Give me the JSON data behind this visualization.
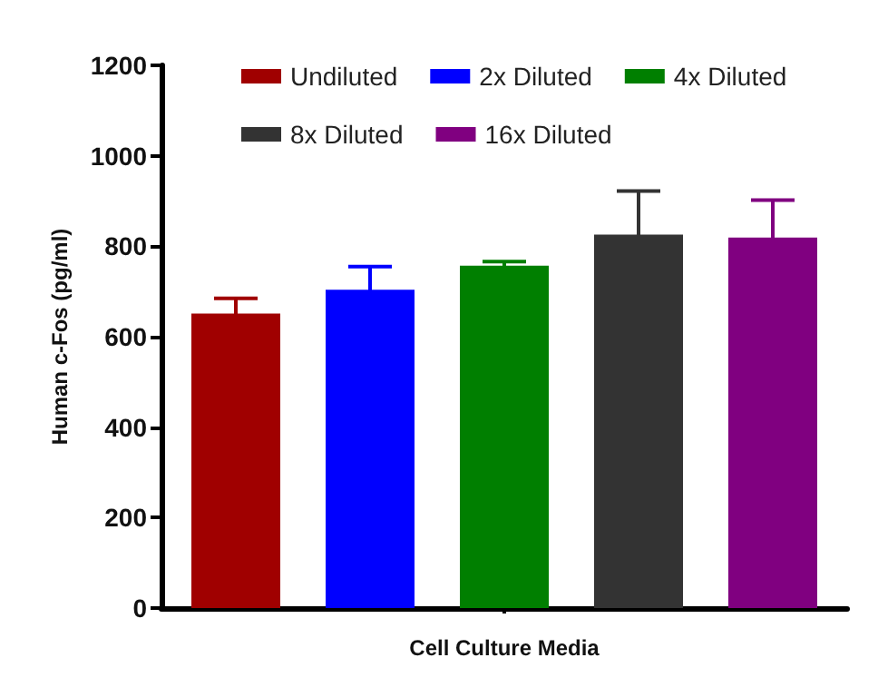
{
  "chart_data": {
    "type": "bar",
    "xlabel": "Cell Culture Media",
    "ylabel": "Human c-Fos (pg/ml)",
    "categories": [
      null
    ],
    "series": [
      {
        "name": "Undiluted",
        "color": "#a00000",
        "values": [
          651
        ],
        "errors": [
          34
        ]
      },
      {
        "name": "2x Diluted",
        "color": "#0000ff",
        "values": [
          704
        ],
        "errors": [
          51
        ]
      },
      {
        "name": "4x Diluted",
        "color": "#007f00",
        "values": [
          757
        ],
        "errors": [
          9
        ]
      },
      {
        "name": "8x Diluted",
        "color": "#333333",
        "values": [
          826
        ],
        "errors": [
          96
        ]
      },
      {
        "name": "16x Diluted",
        "color": "#800080",
        "values": [
          819
        ],
        "errors": [
          83
        ]
      }
    ],
    "ylim": [
      0,
      1200
    ],
    "yticks": [
      0,
      200,
      400,
      600,
      800,
      1000,
      1200
    ],
    "legend": "top",
    "grid": false
  }
}
